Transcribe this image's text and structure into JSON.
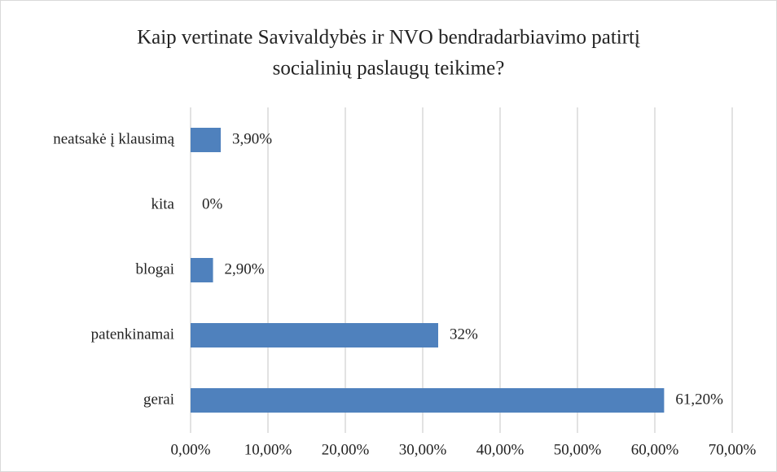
{
  "chart_data": {
    "type": "bar",
    "orientation": "horizontal",
    "title": [
      "Kaip vertinate Savivaldybės ir NVO bendradarbiavimo patirtį",
      "socialinių paslaugų teikime?"
    ],
    "categories": [
      "neatsakė į klausimą",
      "kita",
      "blogai",
      "patenkinamai",
      "gerai"
    ],
    "values": [
      3.9,
      0,
      2.9,
      32,
      61.2
    ],
    "value_labels": [
      "3,90%",
      "0%",
      "2,90%",
      "32%",
      "61,20%"
    ],
    "color": "#4f81bd",
    "xlim": [
      0,
      70
    ],
    "xticks": [
      {
        "value": 0,
        "label": "0,00%"
      },
      {
        "value": 10,
        "label": "10,00%"
      },
      {
        "value": 20,
        "label": "20,00%"
      },
      {
        "value": 30,
        "label": "30,00%"
      },
      {
        "value": 40,
        "label": "40,00%"
      },
      {
        "value": 50,
        "label": "50,00%"
      },
      {
        "value": 60,
        "label": "60,00%"
      },
      {
        "value": 70,
        "label": "70,00%"
      }
    ],
    "grid": true
  }
}
